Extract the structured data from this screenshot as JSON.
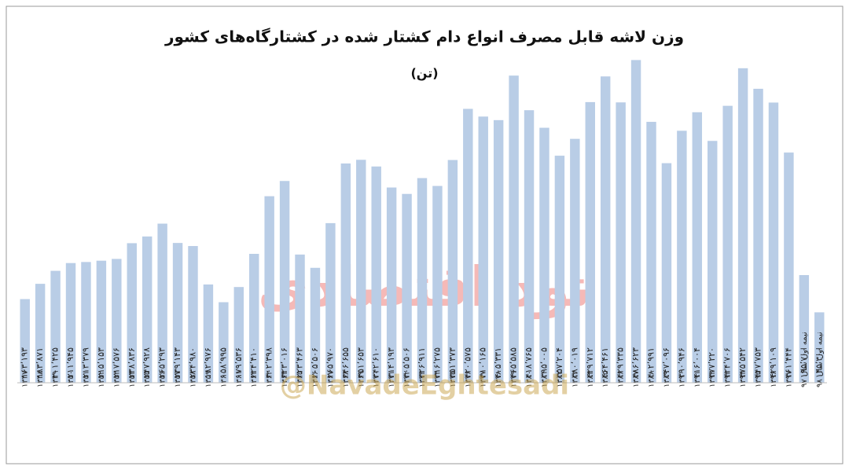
{
  "chart_data": {
    "type": "bar",
    "title": "وزن لاشه قابل مصرف انواع دام کشتار شده در کشتارگاه‌های کشور",
    "subtitle": "(تن)",
    "watermarks": [
      "نود اقتصادی",
      "@NavadeEghtesadi"
    ],
    "color": "#b9cde6",
    "ylim": [
      50000,
      520000
    ],
    "categories": [
      "۱۳۴۷",
      "۱۳۴۸",
      "۱۳۴۹",
      "۱۳۵۰",
      "۱۳۵۱",
      "۱۳۵۲",
      "۱۳۵۳",
      "۱۳۵۴",
      "۱۳۵۵",
      "۱۳۵۶",
      "۱۳۵۷",
      "۱۳۵۸",
      "۱۳۵۹",
      "۱۳۶۰",
      "۱۳۶۱",
      "۱۳۶۲",
      "۱۳۶۳",
      "۱۳۶۴",
      "۱۳۶۵",
      "۱۳۶۶",
      "۱۳۶۷",
      "۱۳۶۸",
      "۱۳۶۹",
      "۱۳۷۰",
      "۱۳۷۱",
      "۱۳۷۲",
      "۱۳۷۳",
      "۱۳۷۴",
      "۱۳۷۵",
      "۱۳۷۶",
      "۱۳۷۷",
      "۱۳۷۸",
      "۱۳۷۹",
      "۱۳۸۰",
      "۱۳۸۱",
      "۱۳۸۲",
      "۱۳۸۳",
      "۱۳۸۴",
      "۱۳۸۵",
      "۱۳۸۶",
      "۱۳۸۷",
      "۱۳۸۸",
      "۱۳۸۹",
      "۱۳۹۰",
      "۱۳۹۱",
      "۱۳۹۲",
      "۱۳۹۳",
      "۱۳۹۴",
      "۱۳۹۵",
      "۱۳۹۶",
      "۱۳۹۷",
      "نیمه اول سال ۹۷",
      "نیمه اول سال ۹۸"
    ],
    "values": [
      163193,
      183871,
      201425,
      211945,
      213379,
      215153,
      217576,
      238836,
      247928,
      265293,
      239143,
      234980,
      182976,
      158995,
      179536,
      224410,
      302398,
      323016,
      223463,
      205506,
      265970,
      346655,
      351653,
      342610,
      314193,
      305506,
      326911,
      316275,
      351373,
      420575,
      410165,
      405331,
      465585,
      418765,
      395005,
      357204,
      380019,
      429712,
      464461,
      429335,
      486623,
      402991,
      347096,
      390946,
      416004,
      377220,
      424706,
      475542,
      447753,
      429109,
      361444,
      195700,
      145300
    ],
    "value_labels": [
      "۱۶۳٬۱۹۳",
      "۱۸۳٬۸۷۱",
      "۲۰۱٬۴۲۵",
      "۲۱۱٬۹۴۵",
      "۲۱۳٬۳۷۹",
      "۲۱۵٬۱۵۳",
      "۲۱۷٬۵۷۶",
      "۲۳۸٬۸۳۶",
      "۲۴۷٬۹۲۸",
      "۲۶۵٬۲۹۳",
      "۲۳۹٬۱۴۳",
      "۲۳۴٬۹۸۰",
      "۱۸۲٬۹۷۶",
      "۱۵۸٬۹۹۵",
      "۱۷۹٬۵۳۶",
      "۲۲۴٬۴۱۰",
      "۳۰۲٬۳۹۸",
      "۳۲۳٬۰۱۶",
      "۲۲۳٬۴۶۳",
      "۲۰۵٬۵۰۶",
      "۲۶۵٬۹۷۰",
      "۳۴۶٬۶۵۵",
      "۳۵۱٬۶۵۳",
      "۳۴۲٬۶۱۰",
      "۳۱۴٬۱۹۳",
      "۳۰۵٬۵۰۶",
      "۳۲۶٬۹۱۱",
      "۳۱۶٬۲۷۵",
      "۳۵۱٬۳۷۳",
      "۴۲۰٬۵۷۵",
      "۴۱۰٬۱۶۵",
      "۴۰۵٬۳۳۱",
      "۴۶۵٬۵۸۵",
      "۴۱۸٬۷۶۵",
      "۳۹۵٬۰۰۵",
      "۳۵۷٬۲۰۴",
      "۳۸۰٬۰۱۹",
      "۴۲۹٬۷۱۲",
      "۴۶۴٬۴۶۱",
      "۴۲۹٬۳۳۵",
      "۴۸۶٬۶۲۳",
      "۴۰۲٬۹۹۱",
      "۳۴۷٬۰۹۶",
      "۳۹۰٬۹۴۶",
      "۴۱۶٬۰۰۴",
      "۳۷۷٬۲۲۰",
      "۴۲۴٬۷۰۶",
      "۴۷۵٬۵۴۲",
      "۴۴۷٬۷۵۳",
      "۴۲۹٬۱۰۹",
      "۳۶۱٬۴۴۴",
      "۱۹۵٬۷۰۰",
      "۱۴۵٬۳۰۰"
    ]
  }
}
